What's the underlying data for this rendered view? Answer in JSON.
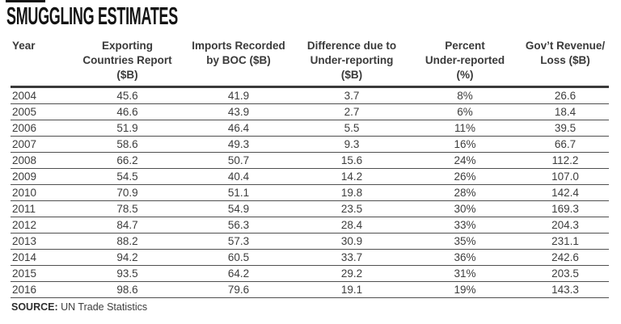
{
  "title": "SMUGGLING ESTIMATES",
  "source": {
    "label": "SOURCE:",
    "text": " UN Trade Statistics"
  },
  "table": {
    "headers": [
      {
        "id": "year",
        "lines": [
          "Year"
        ]
      },
      {
        "id": "exporting-countries-report",
        "lines": [
          "Exporting",
          "Countries Report",
          "($B)"
        ]
      },
      {
        "id": "imports-recorded-by-boc",
        "lines": [
          "Imports Recorded",
          "by BOC ($B)"
        ]
      },
      {
        "id": "difference-under-reporting",
        "lines": [
          "Difference due to",
          "Under-reporting",
          "($B)"
        ]
      },
      {
        "id": "percent-under-reported",
        "lines": [
          "Percent",
          "Under-reported",
          "(%)"
        ]
      },
      {
        "id": "govt-revenue-loss",
        "lines": [
          "Gov’t Revenue/",
          "Loss ($B)"
        ]
      }
    ],
    "rows": [
      [
        "2004",
        "45.6",
        "41.9",
        "3.7",
        "8%",
        "26.6"
      ],
      [
        "2005",
        "46.6",
        "43.9",
        "2.7",
        "6%",
        "18.4"
      ],
      [
        "2006",
        "51.9",
        "46.4",
        "5.5",
        "11%",
        "39.5"
      ],
      [
        "2007",
        "58.6",
        "49.3",
        "9.3",
        "16%",
        "66.7"
      ],
      [
        "2008",
        "66.2",
        "50.7",
        "15.6",
        "24%",
        "112.2"
      ],
      [
        "2009",
        "54.5",
        "40.4",
        "14.2",
        "26%",
        "107.0"
      ],
      [
        "2010",
        "70.9",
        "51.1",
        "19.8",
        "28%",
        "142.4"
      ],
      [
        "2011",
        "78.5",
        "54.9",
        "23.5",
        "30%",
        "169.3"
      ],
      [
        "2012",
        "84.7",
        "56.3",
        "28.4",
        "33%",
        "204.3"
      ],
      [
        "2013",
        "88.2",
        "57.3",
        "30.9",
        "35%",
        "231.1"
      ],
      [
        "2014",
        "94.2",
        "60.5",
        "33.7",
        "36%",
        "242.6"
      ],
      [
        "2015",
        "93.5",
        "64.2",
        "29.2",
        "31%",
        "203.5"
      ],
      [
        "2016",
        "98.6",
        "79.6",
        "19.1",
        "19%",
        "143.3"
      ]
    ]
  },
  "chart_data": {
    "type": "table",
    "title": "SMUGGLING ESTIMATES",
    "columns": [
      "Year",
      "Exporting Countries Report ($B)",
      "Imports Recorded by BOC ($B)",
      "Difference due to Under-reporting ($B)",
      "Percent Under-reported (%)",
      "Gov’t Revenue/Loss ($B)"
    ],
    "years": [
      2004,
      2005,
      2006,
      2007,
      2008,
      2009,
      2010,
      2011,
      2012,
      2013,
      2014,
      2015,
      2016
    ],
    "series": [
      {
        "name": "Exporting Countries Report ($B)",
        "values": [
          45.6,
          46.6,
          51.9,
          58.6,
          66.2,
          54.5,
          70.9,
          78.5,
          84.7,
          88.2,
          94.2,
          93.5,
          98.6
        ]
      },
      {
        "name": "Imports Recorded by BOC ($B)",
        "values": [
          41.9,
          43.9,
          46.4,
          49.3,
          50.7,
          40.4,
          51.1,
          54.9,
          56.3,
          57.3,
          60.5,
          64.2,
          79.6
        ]
      },
      {
        "name": "Difference due to Under-reporting ($B)",
        "values": [
          3.7,
          2.7,
          5.5,
          9.3,
          15.6,
          14.2,
          19.8,
          23.5,
          28.4,
          30.9,
          33.7,
          29.2,
          19.1
        ]
      },
      {
        "name": "Percent Under-reported (%)",
        "values": [
          8,
          6,
          11,
          16,
          24,
          26,
          28,
          30,
          33,
          35,
          36,
          31,
          19
        ]
      },
      {
        "name": "Gov’t Revenue/Loss ($B)",
        "values": [
          26.6,
          18.4,
          39.5,
          66.7,
          112.2,
          107.0,
          142.4,
          169.3,
          204.3,
          231.1,
          242.6,
          203.5,
          143.3
        ]
      }
    ],
    "source": "UN Trade Statistics"
  },
  "colors": {
    "title": "#141414",
    "text": "#3d3d3d",
    "rule_thick": "#3a3a3a",
    "rule_thin": "#4f4f4f",
    "rule_light": "#c2c2c2"
  }
}
